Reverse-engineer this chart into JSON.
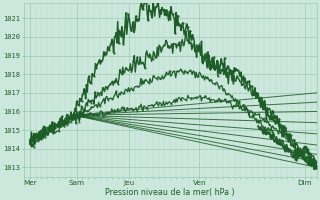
{
  "bg_color": "#cce8dc",
  "grid_color_major": "#9ec9b4",
  "grid_color_minor": "#b8d9cc",
  "line_color": "#1e5c28",
  "yticks": [
    1013,
    1014,
    1015,
    1016,
    1017,
    1018,
    1019,
    1020,
    1021
  ],
  "ylim": [
    1012.5,
    1021.8
  ],
  "xlim": [
    0,
    100
  ],
  "xtick_positions": [
    2,
    18,
    36,
    60,
    96
  ],
  "xtick_labels": [
    "Mer",
    "Sam",
    "Jeu",
    "Ven",
    "Dim"
  ],
  "xlabel": "Pression niveau de la mer( hPa )",
  "convergence_x": 17,
  "convergence_y": 1015.8,
  "fan_endpoints": [
    [
      100,
      1013.0
    ],
    [
      100,
      1013.3
    ],
    [
      100,
      1013.7
    ],
    [
      100,
      1014.2
    ],
    [
      100,
      1014.8
    ],
    [
      100,
      1015.4
    ],
    [
      100,
      1016.0
    ],
    [
      100,
      1016.5
    ],
    [
      100,
      1017.0
    ]
  ]
}
